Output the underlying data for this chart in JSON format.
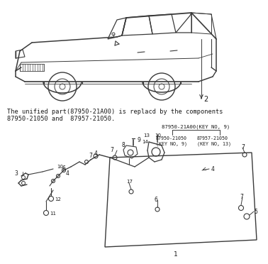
{
  "bg_color": "#ffffff",
  "line_color": "#3a3a3a",
  "text_color": "#1a1a1a",
  "note_line1": "The unified part(87950-21A00) is replacd by the components",
  "note_line2": "87950-21050 and  87957-21050.",
  "part_label_top": "87950-21A00(KEY NO, 9)",
  "part_label_left": "87950-21050\n(KEY NO, 9)",
  "part_label_right": "87957-21050\n(KEY NO, 13)",
  "figsize": [
    3.78,
    3.72
  ],
  "dpi": 100
}
